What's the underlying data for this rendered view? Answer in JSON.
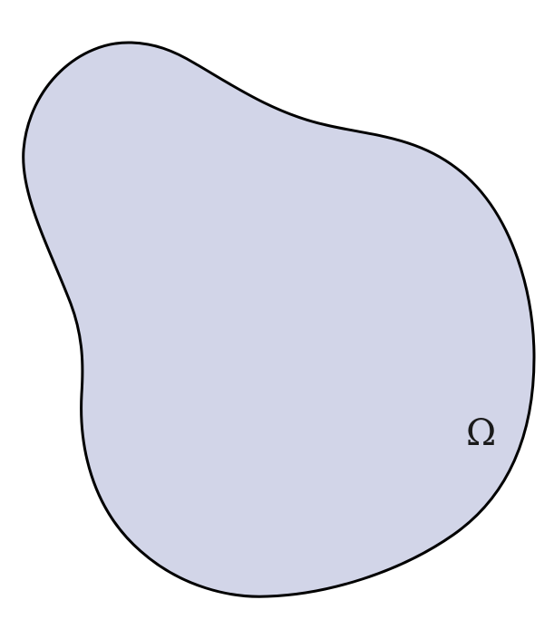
{
  "diagram": {
    "region_label": "Ω",
    "colors": {
      "fill": "#d2d5e8",
      "stroke": "#000000"
    }
  }
}
